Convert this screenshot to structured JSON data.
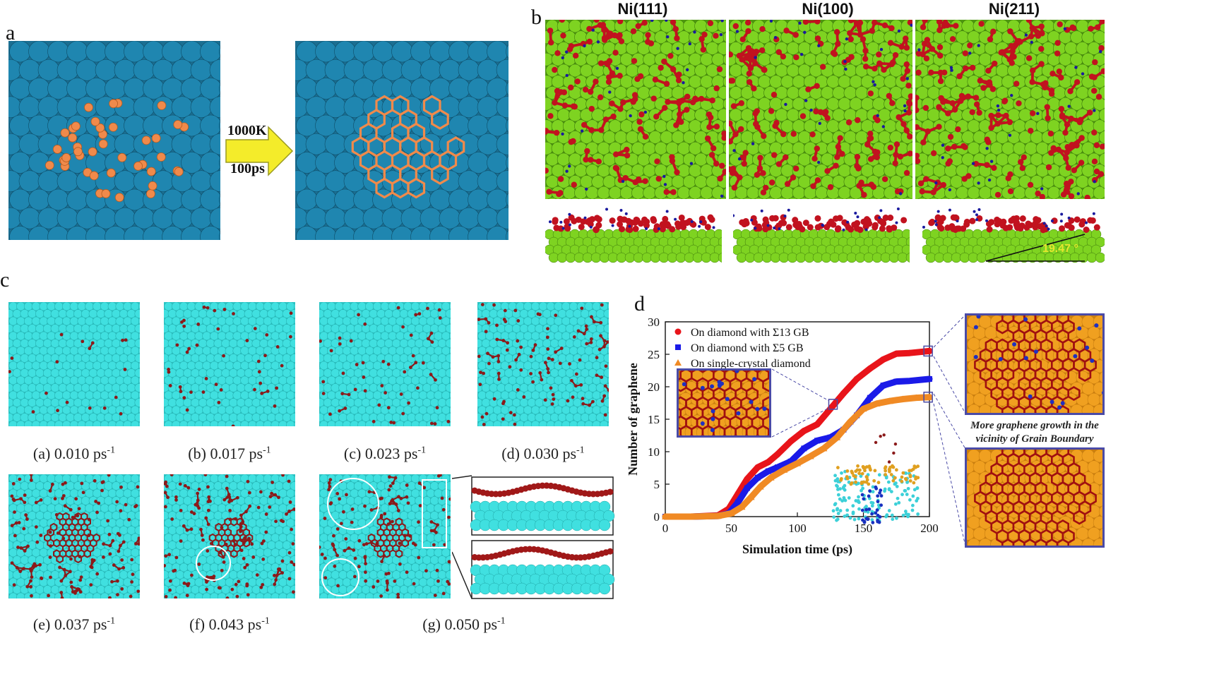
{
  "panels": {
    "a": {
      "letter": "a",
      "arrow_top": "1000K",
      "arrow_bottom": "100ps",
      "colors": {
        "substrate": "#1f86b0",
        "carbon": "#f08a4b"
      }
    },
    "b": {
      "letter": "b",
      "columns": [
        {
          "title": "Ni(111)"
        },
        {
          "title": "Ni(100)"
        },
        {
          "title": "Ni(211)"
        }
      ],
      "angle_label": "19.47 °",
      "colors": {
        "substrate": "#7ed321",
        "carbon": "#c1121f",
        "dots": "#1a1a9e",
        "angle": "#e6e62e"
      }
    },
    "c": {
      "letter": "c",
      "frames": [
        {
          "label": "(a) 0.010 ps",
          "unit_sup": "-1"
        },
        {
          "label": "(b) 0.017 ps",
          "unit_sup": "-1"
        },
        {
          "label": "(c) 0.023 ps",
          "unit_sup": "-1"
        },
        {
          "label": "(d) 0.030 ps",
          "unit_sup": "-1"
        },
        {
          "label": "(e) 0.037 ps",
          "unit_sup": "-1"
        },
        {
          "label": "(f) 0.043 ps",
          "unit_sup": "-1"
        },
        {
          "label": "(g) 0.050 ps",
          "unit_sup": "-1"
        }
      ],
      "colors": {
        "substrate": "#40e0e0",
        "carbon": "#8b1a1a"
      }
    },
    "d": {
      "letter": "d",
      "caption": "More graphene growth in the vicinity of Grain Boundary",
      "colors": {
        "substrate": "#f0a020",
        "carbon": "#a01010",
        "gb": "#2030c0"
      }
    }
  },
  "chart_data": {
    "type": "scatter",
    "xlabel": "Simulation time (ps)",
    "ylabel": "Number of graphene",
    "xlim": [
      0,
      200
    ],
    "ylim": [
      0,
      30
    ],
    "xticks": [
      0,
      50,
      100,
      150,
      200
    ],
    "yticks": [
      0,
      5,
      10,
      15,
      20,
      25,
      30
    ],
    "legend_position": "top-left",
    "series": [
      {
        "name": "On diamond with Σ13 GB",
        "color": "#e8141a",
        "marker": "circle",
        "x": [
          0,
          20,
          40,
          48,
          55,
          62,
          70,
          78,
          85,
          95,
          105,
          115,
          125,
          135,
          145,
          155,
          165,
          175,
          185,
          195,
          200
        ],
        "y": [
          0,
          0,
          0.2,
          1.2,
          3.5,
          5.8,
          7.6,
          8.4,
          9.6,
          11.6,
          13.2,
          14.2,
          16.6,
          19.0,
          21.2,
          22.8,
          24.2,
          25.1,
          25.2,
          25.4,
          25.5
        ]
      },
      {
        "name": "On diamond with Σ5 GB",
        "color": "#1a1ae8",
        "marker": "square",
        "x": [
          0,
          20,
          40,
          48,
          55,
          62,
          70,
          78,
          85,
          95,
          105,
          115,
          125,
          135,
          145,
          155,
          165,
          175,
          185,
          195,
          200
        ],
        "y": [
          0,
          0,
          0.1,
          0.5,
          2.2,
          4.4,
          6.0,
          7.0,
          7.6,
          8.5,
          10.5,
          11.7,
          12.2,
          13.4,
          15.6,
          18.3,
          20.2,
          20.8,
          20.9,
          21.1,
          21.2
        ]
      },
      {
        "name": "On single-crystal diamond",
        "color": "#f08a24",
        "marker": "triangle",
        "x": [
          0,
          20,
          40,
          50,
          58,
          65,
          72,
          80,
          90,
          100,
          110,
          120,
          130,
          140,
          150,
          160,
          170,
          180,
          190,
          200
        ],
        "y": [
          0,
          0,
          0.1,
          0.5,
          1.5,
          3.0,
          4.6,
          6.0,
          7.2,
          8.2,
          9.3,
          10.5,
          12.2,
          14.6,
          16.6,
          17.4,
          17.8,
          18.1,
          18.3,
          18.4
        ]
      }
    ]
  }
}
